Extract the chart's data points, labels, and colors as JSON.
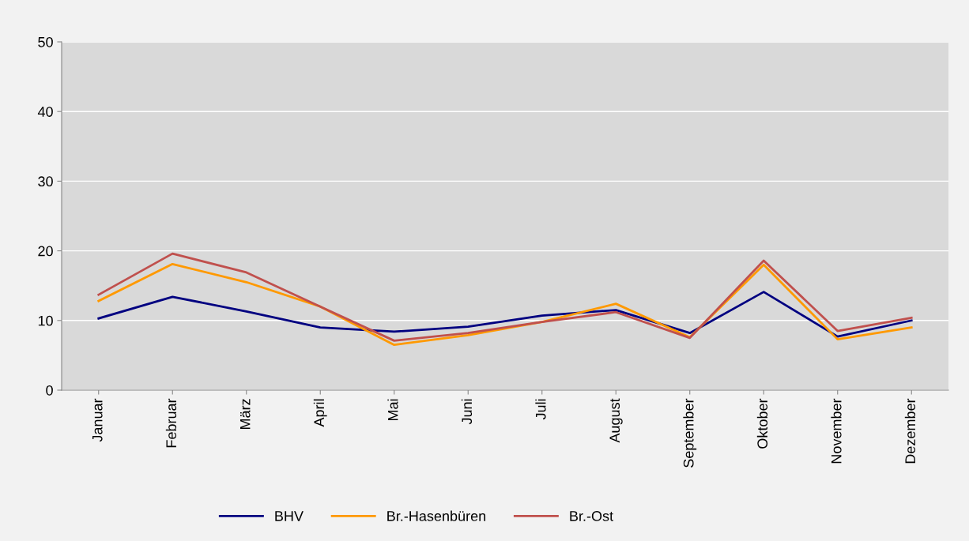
{
  "chart_data": {
    "type": "line",
    "categories": [
      "Januar",
      "Februar",
      "März",
      "April",
      "Mai",
      "Juni",
      "Juli",
      "August",
      "September",
      "Oktober",
      "November",
      "Dezember"
    ],
    "series": [
      {
        "name": "BHV",
        "color": "#000080",
        "values": [
          10.3,
          13.4,
          11.3,
          9.0,
          8.4,
          9.1,
          10.7,
          11.5,
          8.2,
          14.1,
          7.7,
          10.0
        ]
      },
      {
        "name": "Br.-Hasenbüren",
        "color": "#ff9900",
        "values": [
          12.8,
          18.1,
          15.5,
          12.0,
          6.5,
          7.9,
          9.8,
          12.4,
          7.6,
          18.0,
          7.3,
          9.0
        ]
      },
      {
        "name": "Br.-Ost",
        "color": "#c0504d",
        "values": [
          13.7,
          19.6,
          16.9,
          12.0,
          7.1,
          8.2,
          9.8,
          11.2,
          7.5,
          18.6,
          8.5,
          10.4
        ]
      }
    ],
    "ylim": [
      0,
      50
    ],
    "yticks": [
      0,
      10,
      20,
      30,
      40,
      50
    ],
    "grid": "y",
    "legend": "bottom",
    "marker": "none",
    "line_style": "solid"
  }
}
